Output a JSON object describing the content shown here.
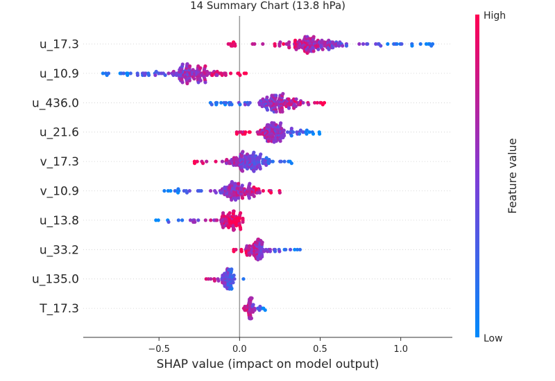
{
  "chart_data": {
    "type": "scatter",
    "title": "14 Summary Chart (13.8 hPa)",
    "xlabel": "SHAP value (impact on model output)",
    "xlim": [
      -0.97,
      1.32
    ],
    "xticks": [
      -0.5,
      0.0,
      0.5,
      1.0
    ],
    "xtick_labels": [
      "−0.5",
      "0.0",
      "0.5",
      "1.0"
    ],
    "features": [
      "u_17.3",
      "u_10.9",
      "u_436.0",
      "u_21.6",
      "v_17.3",
      "v_10.9",
      "u_13.8",
      "u_33.2",
      "u_135.0",
      "T_17.3"
    ],
    "colorbar": {
      "label": "Feature value",
      "high_label": "High",
      "low_label": "Low",
      "low_color": "#008afb",
      "mid_color": "#7f3cd6",
      "high_color": "#ff0052"
    },
    "series": [
      {
        "feature": "u_17.3",
        "clusters": [
          {
            "min": -0.08,
            "max": -0.02,
            "center": -0.05,
            "spread": 0.1,
            "count": 8,
            "low_tail": true
          },
          {
            "min": 0.08,
            "max": 1.2,
            "center": 0.45,
            "spread": 0.95,
            "count": 150,
            "order": "hl"
          }
        ]
      },
      {
        "feature": "u_10.9",
        "clusters": [
          {
            "min": -0.87,
            "max": 0.07,
            "center": -0.3,
            "spread": 0.85,
            "count": 150,
            "order": "lh"
          }
        ]
      },
      {
        "feature": "u_436.0",
        "clusters": [
          {
            "min": -0.2,
            "max": 0.53,
            "center": 0.24,
            "spread": 0.9,
            "count": 140,
            "order": "lh"
          }
        ]
      },
      {
        "feature": "u_21.6",
        "clusters": [
          {
            "min": -0.02,
            "max": 0.5,
            "center": 0.2,
            "spread": 0.9,
            "count": 130,
            "order": "hl"
          }
        ]
      },
      {
        "feature": "v_17.3",
        "clusters": [
          {
            "min": -0.32,
            "max": 0.39,
            "center": 0.05,
            "spread": 0.8,
            "count": 140,
            "order": "hl"
          }
        ]
      },
      {
        "feature": "v_10.9",
        "clusters": [
          {
            "min": -0.47,
            "max": 0.25,
            "center": 0.0,
            "spread": 0.85,
            "count": 130,
            "order": "lh"
          }
        ]
      },
      {
        "feature": "u_13.8",
        "clusters": [
          {
            "min": -0.54,
            "max": 0.02,
            "center": -0.05,
            "spread": 0.8,
            "count": 90,
            "order": "lh"
          }
        ]
      },
      {
        "feature": "u_33.2",
        "clusters": [
          {
            "min": -0.04,
            "max": 0.39,
            "center": 0.1,
            "spread": 0.9,
            "count": 90,
            "order": "hl"
          }
        ]
      },
      {
        "feature": "u_135.0",
        "clusters": [
          {
            "min": -0.22,
            "max": 0.03,
            "center": -0.07,
            "spread": 0.8,
            "count": 70,
            "order": "hl"
          }
        ]
      },
      {
        "feature": "T_17.3",
        "clusters": [
          {
            "min": 0.02,
            "max": 0.16,
            "center": 0.06,
            "spread": 0.7,
            "count": 55,
            "order": "hl"
          }
        ]
      }
    ]
  }
}
